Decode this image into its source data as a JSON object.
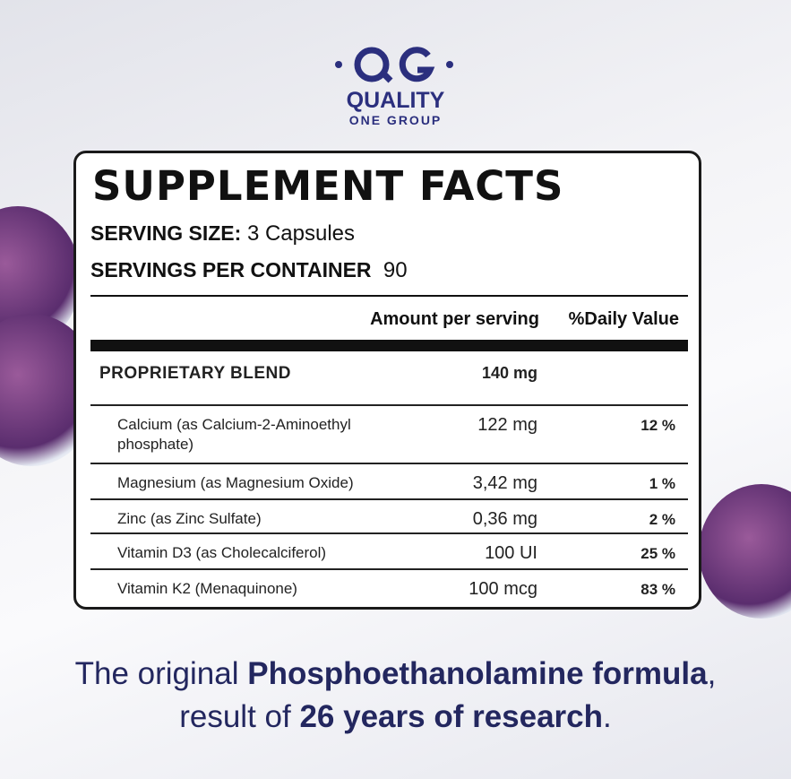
{
  "logo": {
    "name": "QUALITY",
    "subname": "ONE GROUP"
  },
  "facts": {
    "title": "SUPPLEMENT FACTS",
    "serving_size": {
      "label": "SERVING SIZE:",
      "value": "3 Capsules"
    },
    "servings_per_container": {
      "label": "SERVINGS PER CONTAINER",
      "value": 90
    },
    "columns": {
      "amount": "Amount per serving",
      "daily_value": "%Daily Value"
    },
    "rows": [
      {
        "name": "PROPRIETARY BLEND",
        "amount": "140 mg"
      },
      {
        "name": "Calcium (as Calcium-2-Aminoethyl phosphate)",
        "amount": "122 mg",
        "daily_value": "12 %"
      },
      {
        "name": "Magnesium (as Magnesium Oxide)",
        "amount": "3,42 mg",
        "daily_value": "1 %"
      },
      {
        "name": "Zinc (as Zinc Sulfate)",
        "amount": "0,36 mg",
        "daily_value": "2 %"
      },
      {
        "name": "Vitamin D3 (as Cholecalciferol)",
        "amount": "100 UI",
        "daily_value": "25 %"
      },
      {
        "name": "Vitamin K2 (Menaquinone)",
        "amount": "100 mcg",
        "daily_value": "83 %"
      }
    ]
  },
  "tagline": {
    "line1": [
      "The original ",
      "Phosphoethanolamine formula",
      ","
    ],
    "line2": [
      "result of ",
      "26 years of research",
      "."
    ]
  }
}
